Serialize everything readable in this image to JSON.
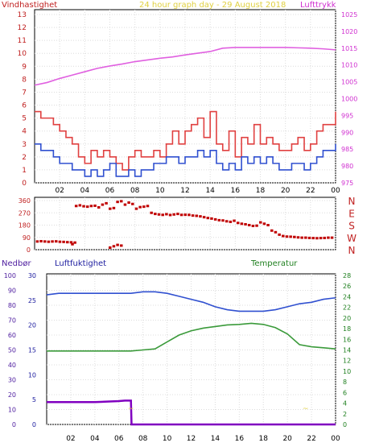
{
  "chart_data": [
    {
      "type": "line",
      "panel": "wind-pressure",
      "title": "24 hour graph day - 29 August 2018",
      "left_axis_label": "Vindhastighet",
      "right_axis_label": "Lufttrykk",
      "x_ticks": [
        "02",
        "04",
        "06",
        "08",
        "10",
        "12",
        "14",
        "16",
        "18",
        "20",
        "22",
        "00"
      ],
      "left_ylim": [
        0,
        13
      ],
      "left_ticks": [
        "0",
        "1",
        "2",
        "3",
        "4",
        "5",
        "6",
        "7",
        "8",
        "9",
        "10",
        "11",
        "12",
        "13"
      ],
      "right_ylim": [
        975,
        1025
      ],
      "right_ticks": [
        "975",
        "980",
        "985",
        "990",
        "995",
        "1000",
        "1005",
        "1010",
        "1015",
        "1020",
        "1025"
      ],
      "x_range_hours": [
        0,
        24
      ],
      "series": [
        {
          "axis": "right",
          "color": "#e060e0",
          "x": [
            0,
            1,
            2,
            3,
            4,
            5,
            6,
            7,
            8,
            9,
            10,
            11,
            12,
            13,
            14,
            15,
            16,
            17,
            18,
            19,
            20,
            21,
            22,
            23,
            24
          ],
          "values": [
            1004.0,
            1004.8,
            1006,
            1007,
            1008,
            1009,
            1009.7,
            1010.3,
            1011,
            1011.5,
            1012,
            1012.4,
            1013,
            1013.5,
            1014,
            1015,
            1015.2,
            1015.2,
            1015.2,
            1015.2,
            1015.2,
            1015.1,
            1015,
            1014.8,
            1014.5
          ]
        },
        {
          "axis": "left",
          "color": "#e04040",
          "x": [
            0,
            0.5,
            1,
            1.5,
            2,
            2.5,
            3,
            3.5,
            4,
            4.5,
            5,
            5.5,
            6,
            6.5,
            7,
            7.5,
            8,
            8.5,
            9,
            9.5,
            10,
            10.5,
            11,
            11.5,
            12,
            12.5,
            13,
            13.5,
            14,
            14.5,
            15,
            15.5,
            16,
            16.5,
            17,
            17.5,
            18,
            18.5,
            19,
            19.5,
            20,
            20.5,
            21,
            21.5,
            22,
            22.5,
            23,
            23.5,
            24
          ],
          "values": [
            5.5,
            5.0,
            5.0,
            4.5,
            4.0,
            3.5,
            3.0,
            2.0,
            1.5,
            2.5,
            2.0,
            2.5,
            2.0,
            1.5,
            1.0,
            2.0,
            2.5,
            2.0,
            2.0,
            2.5,
            2.0,
            3.0,
            4.0,
            3.0,
            4.0,
            4.5,
            5.0,
            3.5,
            5.5,
            3.0,
            2.5,
            4.0,
            2.0,
            3.5,
            3.0,
            4.5,
            3.0,
            3.5,
            3.0,
            2.5,
            2.5,
            3.0,
            3.5,
            2.5,
            3.0,
            4.0,
            4.5,
            4.5,
            5.5
          ]
        },
        {
          "axis": "left",
          "color": "#3050d0",
          "x": [
            0,
            0.5,
            1,
            1.5,
            2,
            2.5,
            3,
            3.5,
            4,
            4.5,
            5,
            5.5,
            6,
            6.5,
            7,
            7.5,
            8,
            8.5,
            9,
            9.5,
            10,
            10.5,
            11,
            11.5,
            12,
            12.5,
            13,
            13.5,
            14,
            14.5,
            15,
            15.5,
            16,
            16.5,
            17,
            17.5,
            18,
            18.5,
            19,
            19.5,
            20,
            20.5,
            21,
            21.5,
            22,
            22.5,
            23,
            23.5,
            24
          ],
          "values": [
            3.0,
            2.5,
            2.5,
            2.0,
            1.5,
            1.5,
            1.0,
            1.0,
            0.5,
            1.0,
            0.5,
            1.0,
            1.5,
            0.5,
            0.5,
            1.0,
            0.5,
            1.0,
            1.0,
            1.5,
            1.5,
            2.0,
            2.0,
            1.5,
            2.0,
            2.0,
            2.5,
            2.0,
            2.5,
            1.5,
            1.0,
            1.5,
            1.0,
            2.0,
            1.5,
            2.0,
            1.5,
            2.0,
            1.5,
            1.0,
            1.0,
            1.5,
            1.5,
            1.0,
            1.5,
            2.0,
            2.5,
            2.5,
            3.0
          ]
        }
      ]
    },
    {
      "type": "scatter",
      "panel": "wind-direction",
      "left_ylim": [
        0,
        360
      ],
      "left_ticks": [
        "0",
        "90",
        "180",
        "270",
        "360"
      ],
      "right_ticks": [
        "N",
        "W",
        "S",
        "E",
        "N"
      ],
      "x_range_hours": [
        0,
        24
      ],
      "series": [
        {
          "color": "#c00000",
          "x": [
            0.2,
            0.5,
            0.8,
            1.1,
            1.4,
            1.7,
            2.0,
            2.3,
            2.6,
            2.9,
            3.2,
            3.3,
            3.6,
            3.9,
            4.2,
            4.5,
            4.8,
            5.1,
            5.4,
            5.7,
            6.0,
            6.3,
            6.6,
            6.9,
            7.2,
            7.5,
            7.8,
            8.1,
            8.4,
            8.7,
            9.0,
            9.3,
            9.6,
            9.9,
            10.2,
            10.5,
            10.8,
            11.1,
            11.4,
            11.7,
            12.0,
            12.3,
            12.6,
            12.9,
            13.2,
            13.5,
            13.8,
            14.1,
            14.4,
            14.7,
            15.0,
            15.3,
            15.6,
            15.9,
            16.2,
            16.5,
            16.8,
            17.1,
            17.4,
            17.7,
            18.0,
            18.3,
            18.6,
            18.9,
            19.2,
            19.5,
            19.8,
            20.1,
            20.4,
            20.7,
            21.0,
            21.3,
            21.6,
            21.9,
            22.2,
            22.5,
            22.8,
            23.1,
            23.4,
            23.7,
            6.0,
            6.3,
            6.6,
            6.9,
            3.0
          ],
          "values": [
            60,
            62,
            60,
            58,
            60,
            61,
            58,
            57,
            55,
            54,
            52,
            320,
            325,
            318,
            315,
            320,
            322,
            310,
            330,
            340,
            300,
            305,
            350,
            355,
            330,
            345,
            335,
            300,
            312,
            315,
            320,
            270,
            262,
            258,
            255,
            260,
            254,
            258,
            262,
            255,
            256,
            255,
            250,
            248,
            244,
            238,
            232,
            228,
            222,
            216,
            214,
            208,
            204,
            212,
            196,
            190,
            186,
            180,
            174,
            176,
            200,
            190,
            180,
            140,
            128,
            110,
            100,
            96,
            95,
            93,
            90,
            88,
            88,
            86,
            85,
            84,
            85,
            86,
            88,
            88,
            15,
            25,
            35,
            30,
            40
          ]
        }
      ]
    },
    {
      "type": "line",
      "panel": "rain-humidity-temperature",
      "left_axis_label": "Nedbør",
      "middle_axis_label": "Luftfuktighet",
      "temperature_label": "Temperatur",
      "rain_ticks": [
        "0",
        "10",
        "20",
        "30",
        "40",
        "50",
        "60",
        "70",
        "80",
        "90",
        "100"
      ],
      "humidity_ticks": [
        "0",
        "5",
        "10",
        "15",
        "20",
        "25",
        "30"
      ],
      "temperature_ticks": [
        "0",
        "2",
        "4",
        "6",
        "8",
        "10",
        "12",
        "14",
        "16",
        "18",
        "20",
        "22",
        "24",
        "26",
        "28"
      ],
      "rain_ylim": [
        0,
        100
      ],
      "humidity_ylim": [
        0,
        30
      ],
      "temperature_ylim": [
        0,
        28
      ],
      "x_range_hours": [
        0,
        24
      ],
      "annotations": [
        {
          "x": 7.0,
          "text": "~"
        },
        {
          "x": 21.5,
          "text": "~"
        }
      ],
      "series": [
        {
          "axis": "rain",
          "color": "#3050d0",
          "x": [
            0,
            1,
            2,
            3,
            4,
            5,
            6,
            7,
            8,
            9,
            10,
            11,
            12,
            13,
            14,
            15,
            16,
            17,
            18,
            19,
            20,
            21,
            22,
            23,
            24
          ],
          "values": [
            87,
            88,
            88,
            88,
            88,
            88,
            88,
            88,
            89,
            89,
            88,
            86,
            84,
            82,
            79,
            77,
            76,
            76,
            76,
            77,
            79,
            81,
            82,
            84,
            85
          ]
        },
        {
          "axis": "temperature",
          "color": "#3a9a3a",
          "x": [
            0,
            1,
            2,
            3,
            4,
            5,
            6,
            7,
            8,
            9,
            10,
            11,
            12,
            13,
            14,
            15,
            16,
            17,
            18,
            19,
            20,
            21,
            22,
            23,
            24
          ],
          "values": [
            13.8,
            13.8,
            13.8,
            13.8,
            13.8,
            13.8,
            13.8,
            13.8,
            14.0,
            14.2,
            15.5,
            16.8,
            17.6,
            18.1,
            18.4,
            18.7,
            18.8,
            19.0,
            18.8,
            18.2,
            17.0,
            15.0,
            14.6,
            14.4,
            14.2
          ]
        },
        {
          "axis": "humidity",
          "color": "#8000c0",
          "x": [
            0,
            1,
            2,
            3,
            4,
            5,
            6,
            6.5,
            7.0,
            7.05,
            8,
            9,
            10,
            11,
            12,
            13,
            14,
            15,
            16,
            17,
            18,
            19,
            20,
            21,
            22,
            23,
            24
          ],
          "values": [
            4.5,
            4.5,
            4.5,
            4.5,
            4.5,
            4.6,
            4.7,
            4.8,
            4.8,
            0,
            0,
            0,
            0,
            0,
            0,
            0,
            0,
            0,
            0,
            0,
            0,
            0,
            0,
            0,
            0,
            0,
            0
          ]
        }
      ]
    }
  ]
}
